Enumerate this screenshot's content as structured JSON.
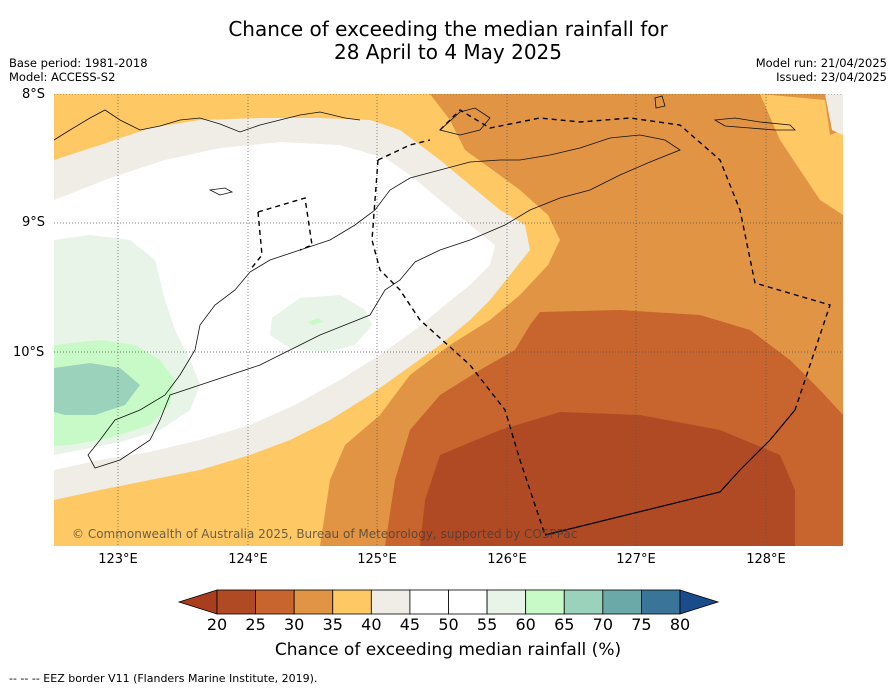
{
  "title": {
    "line1": "Chance of exceeding the median rainfall for",
    "line2": "28 April to 4 May 2025"
  },
  "meta": {
    "base_period": "Base period: 1981-2018",
    "model": "Model: ACCESS-S2",
    "model_run": "Model run: 21/04/2025",
    "issued": "Issued: 23/04/2025"
  },
  "map": {
    "lat_labels": [
      "8°S",
      "9°S",
      "10°S"
    ],
    "lon_labels": [
      "123°E",
      "124°E",
      "125°E",
      "126°E",
      "127°E",
      "128°E"
    ],
    "copyright": "© Commonwealth of Australia 2025, Bureau of Meteorology, supported by COSPPac",
    "colors": {
      "c20_25": "#b04a24",
      "c25_30": "#c8642e",
      "c30_35": "#e09444",
      "c35_40": "#fec864",
      "c40_45": "#f0ece6",
      "c45_55": "#ffffff",
      "c55_60": "#e8f4e8",
      "c60_65": "#c8fac8",
      "c65_70": "#9ad2bc"
    }
  },
  "colorbar": {
    "ticks": [
      "20",
      "25",
      "30",
      "35",
      "40",
      "45",
      "50",
      "55",
      "60",
      "65",
      "70",
      "75",
      "80"
    ],
    "colors": [
      "#a83e1e",
      "#b04a24",
      "#c8642e",
      "#e09444",
      "#fec864",
      "#f0ece6",
      "#ffffff",
      "#ffffff",
      "#e8f4e8",
      "#c8fac8",
      "#9ad2bc",
      "#6ba8a8",
      "#3a7498",
      "#1a4c8c"
    ],
    "title": "Chance of exceeding median rainfall (%)"
  },
  "footnote": "--  --  -- EEZ border V11 (Flanders Marine Institute, 2019)."
}
